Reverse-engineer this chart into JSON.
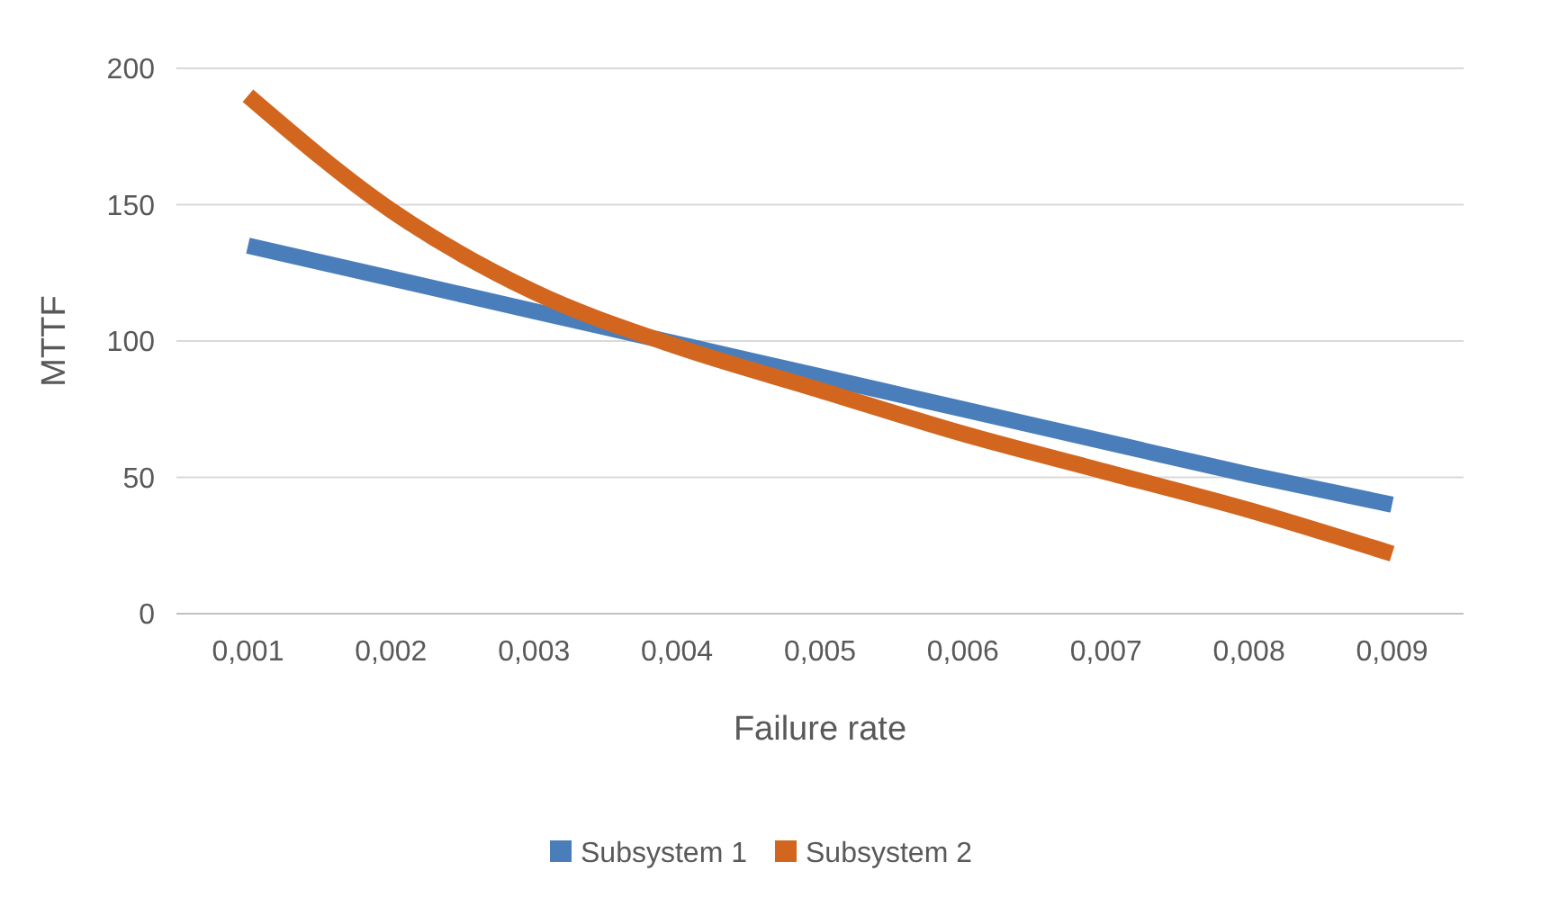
{
  "chart_data": {
    "type": "line",
    "xlabel": "Failure rate",
    "ylabel": "MTTF",
    "categories": [
      "0,001",
      "0,002",
      "0,003",
      "0,004",
      "0,005",
      "0,006",
      "0,007",
      "0,008",
      "0,009"
    ],
    "series": [
      {
        "name": "Subsystem 1",
        "color": "#4a7ebb",
        "values": [
          135,
          123,
          111,
          99,
          87,
          75,
          63,
          51,
          40
        ]
      },
      {
        "name": "Subsystem 2",
        "color": "#d2661f",
        "values": [
          190,
          148,
          118,
          98,
          82,
          66,
          52,
          38,
          22
        ]
      }
    ],
    "ylim": [
      0,
      200
    ],
    "yticks": [
      0,
      50,
      100,
      150,
      200
    ],
    "grid": "y",
    "legend": "bottom",
    "marker": "none",
    "line_style": "solid"
  }
}
